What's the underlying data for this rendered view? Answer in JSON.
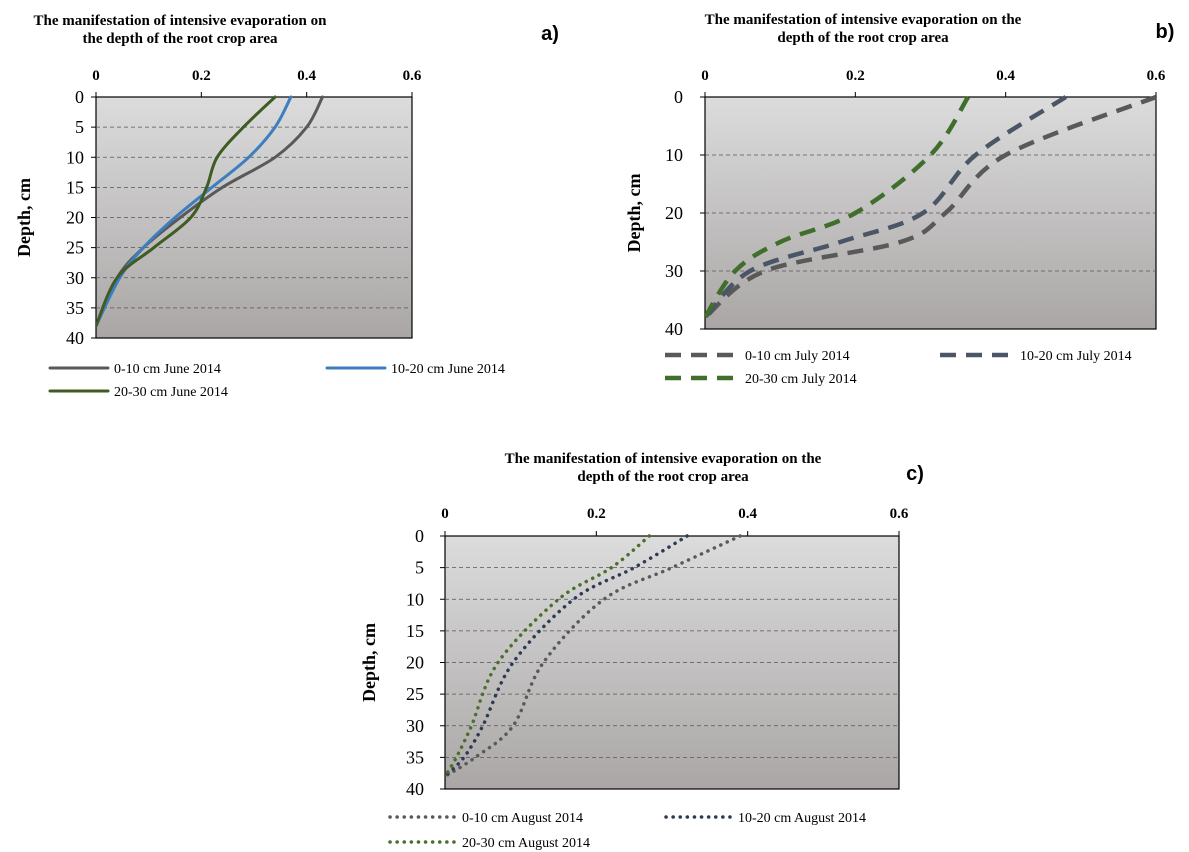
{
  "chart_data": [
    {
      "type": "line",
      "panel_label": "a)",
      "title_lines": [
        "The manifestation of intensive evaporation on",
        "the depth of the root crop area"
      ],
      "xlabel": "",
      "ylabel": "Depth, cm",
      "xlim": [
        0,
        0.6
      ],
      "ylim": [
        0,
        40
      ],
      "y_inverted": true,
      "x_axis_position": "top",
      "x_ticks": [
        "0",
        "0.2",
        "0.4",
        "0.6"
      ],
      "y_ticks": [
        "0",
        "5",
        "10",
        "15",
        "20",
        "25",
        "30",
        "35",
        "40"
      ],
      "grid": "horizontal dashed",
      "legend_position": "bottom",
      "series": [
        {
          "name": "0-10 cm June 2014",
          "color": "#595959",
          "style": "solid",
          "x": [
            0.43,
            0.4,
            0.34,
            0.24,
            0.16,
            0.09,
            0.04,
            0.0
          ],
          "y": [
            0,
            5,
            10,
            15,
            20,
            25,
            30,
            38
          ]
        },
        {
          "name": "10-20 cm June 2014",
          "color": "#3d7ebf",
          "style": "solid",
          "x": [
            0.37,
            0.34,
            0.29,
            0.22,
            0.15,
            0.09,
            0.045,
            0.0
          ],
          "y": [
            0,
            5,
            10,
            15,
            20,
            25,
            30,
            38
          ]
        },
        {
          "name": "20-30 cm June 2014",
          "color": "#3f5c23",
          "style": "solid",
          "x": [
            0.34,
            0.28,
            0.23,
            0.21,
            0.18,
            0.11,
            0.04,
            0.0
          ],
          "y": [
            0,
            5,
            10,
            15,
            20,
            25,
            30,
            38
          ]
        }
      ]
    },
    {
      "type": "line",
      "panel_label": "b)",
      "title_lines": [
        "The manifestation of intensive evaporation on the",
        "depth of the root crop area"
      ],
      "xlabel": "",
      "ylabel": "Depth, cm",
      "xlim": [
        0,
        0.6
      ],
      "ylim": [
        0,
        40
      ],
      "y_inverted": true,
      "x_axis_position": "top",
      "x_ticks": [
        "0",
        "0.2",
        "0.4",
        "0.6"
      ],
      "y_ticks": [
        "0",
        "10",
        "20",
        "30",
        "40"
      ],
      "grid": "horizontal dashed",
      "legend_position": "bottom",
      "series": [
        {
          "name": "0-10 cm July 2014",
          "color": "#595959",
          "style": "dashed",
          "x": [
            0.6,
            0.4,
            0.32,
            0.26,
            0.08,
            0.0
          ],
          "y": [
            0,
            10,
            20,
            25,
            30,
            38
          ]
        },
        {
          "name": "10-20 cm July 2014",
          "color": "#4a5566",
          "style": "dashed",
          "x": [
            0.48,
            0.36,
            0.29,
            0.18,
            0.06,
            0.0
          ],
          "y": [
            0,
            10,
            20,
            25,
            30,
            38
          ]
        },
        {
          "name": "20-30 cm July 2014",
          "color": "#3f6f2a",
          "style": "dashed",
          "x": [
            0.35,
            0.3,
            0.2,
            0.1,
            0.04,
            0.0
          ],
          "y": [
            0,
            10,
            20,
            25,
            30,
            38
          ]
        }
      ]
    },
    {
      "type": "line",
      "panel_label": "c)",
      "title_lines": [
        "The manifestation of intensive evaporation on the",
        "depth of the root crop area"
      ],
      "xlabel": "",
      "ylabel": "Depth, cm",
      "xlim": [
        0,
        0.6
      ],
      "ylim": [
        0,
        40
      ],
      "y_inverted": true,
      "x_axis_position": "top",
      "x_ticks": [
        "0",
        "0.2",
        "0.4",
        "0.6"
      ],
      "y_ticks": [
        "0",
        "5",
        "10",
        "15",
        "20",
        "25",
        "30",
        "35",
        "40"
      ],
      "grid": "horizontal dashed",
      "legend_position": "bottom",
      "series": [
        {
          "name": "0-10 cm August 2014",
          "color": "#595959",
          "style": "dotted",
          "x": [
            0.39,
            0.3,
            0.21,
            0.13,
            0.09,
            0.04,
            0.0
          ],
          "y": [
            0,
            5,
            10,
            20,
            30,
            35,
            38
          ]
        },
        {
          "name": "10-20 cm August 2014",
          "color": "#2e3a52",
          "style": "dotted",
          "x": [
            0.32,
            0.25,
            0.17,
            0.09,
            0.05,
            0.025,
            0.0
          ],
          "y": [
            0,
            5,
            10,
            20,
            30,
            35,
            38
          ]
        },
        {
          "name": "20-30 cm August 2014",
          "color": "#4a6f2a",
          "style": "dotted",
          "x": [
            0.27,
            0.22,
            0.15,
            0.07,
            0.035,
            0.015,
            0.0
          ],
          "y": [
            0,
            5,
            10,
            20,
            30,
            35,
            38
          ]
        }
      ]
    }
  ]
}
